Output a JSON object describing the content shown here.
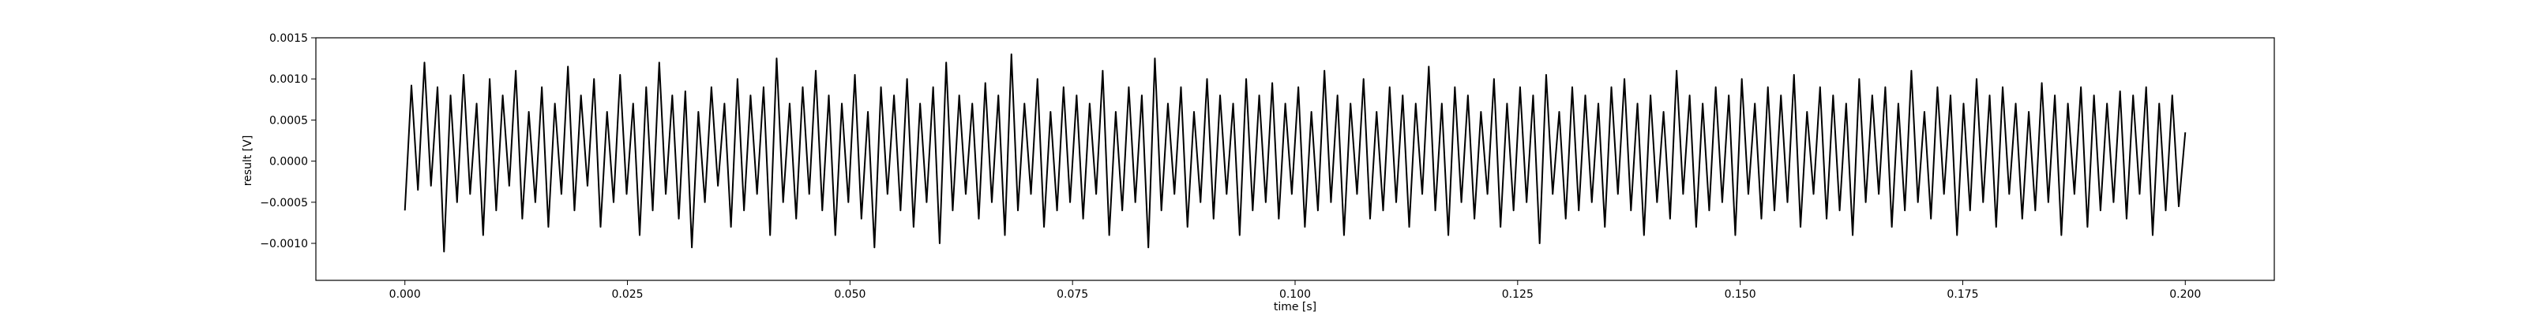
{
  "chart_data": {
    "type": "line",
    "title": "",
    "xlabel": "time [s]",
    "ylabel": "result [V]",
    "xlim": [
      -0.01,
      0.21
    ],
    "ylim": [
      -0.00145,
      0.0015
    ],
    "x_ticks": [
      0.0,
      0.025,
      0.05,
      0.075,
      0.1,
      0.125,
      0.15,
      0.175,
      0.2
    ],
    "x_tick_labels": [
      "0.000",
      "0.025",
      "0.050",
      "0.075",
      "0.100",
      "0.125",
      "0.150",
      "0.175",
      "0.200"
    ],
    "y_ticks": [
      -0.001,
      -0.0005,
      0.0,
      0.0005,
      0.001,
      0.0015
    ],
    "y_tick_labels": [
      "−0.0010",
      "−0.0005",
      "0.0000",
      "0.0005",
      "0.0010",
      "0.0015"
    ],
    "grid": false,
    "line_color": "#000000",
    "series": [
      {
        "x_start": 0.0,
        "x_end": 0.2,
        "values": [
          -0.0006,
          0.00092,
          -0.00035,
          0.0012,
          -0.0003,
          0.0009,
          -0.0011,
          0.0008,
          -0.0005,
          0.00105,
          -0.0004,
          0.0007,
          -0.0009,
          0.001,
          -0.0006,
          0.0008,
          -0.0003,
          0.0011,
          -0.0007,
          0.0006,
          -0.0005,
          0.0009,
          -0.0008,
          0.0007,
          -0.0004,
          0.00115,
          -0.0006,
          0.0008,
          -0.0003,
          0.001,
          -0.0008,
          0.0006,
          -0.0005,
          0.00105,
          -0.0004,
          0.0007,
          -0.0009,
          0.0009,
          -0.0006,
          0.0012,
          -0.0004,
          0.0008,
          -0.0007,
          0.00085,
          -0.00105,
          0.0006,
          -0.0005,
          0.0009,
          -0.0003,
          0.0007,
          -0.0008,
          0.001,
          -0.0006,
          0.0008,
          -0.0004,
          0.0009,
          -0.0009,
          0.00125,
          -0.0005,
          0.0007,
          -0.0007,
          0.0009,
          -0.0004,
          0.0011,
          -0.0006,
          0.0008,
          -0.0009,
          0.0007,
          -0.0005,
          0.00105,
          -0.0007,
          0.0006,
          -0.00105,
          0.0009,
          -0.0004,
          0.0008,
          -0.0006,
          0.001,
          -0.0008,
          0.0007,
          -0.0005,
          0.0009,
          -0.001,
          0.0012,
          -0.0006,
          0.0008,
          -0.0004,
          0.0007,
          -0.0007,
          0.00095,
          -0.0005,
          0.0008,
          -0.0009,
          0.0013,
          -0.0006,
          0.0007,
          -0.0004,
          0.001,
          -0.0008,
          0.0006,
          -0.0006,
          0.0009,
          -0.0005,
          0.0008,
          -0.0007,
          0.0007,
          -0.0004,
          0.0011,
          -0.0009,
          0.0006,
          -0.0006,
          0.0009,
          -0.0005,
          0.0008,
          -0.00105,
          0.00125,
          -0.0006,
          0.0007,
          -0.0004,
          0.0009,
          -0.0008,
          0.0006,
          -0.0005,
          0.001,
          -0.0007,
          0.0008,
          -0.0004,
          0.0007,
          -0.0009,
          0.001,
          -0.0006,
          0.0008,
          -0.0005,
          0.00095,
          -0.0007,
          0.0007,
          -0.0004,
          0.0009,
          -0.0008,
          0.0006,
          -0.0006,
          0.0011,
          -0.0005,
          0.0008,
          -0.0009,
          0.0007,
          -0.0004,
          0.001,
          -0.0007,
          0.0006,
          -0.0006,
          0.0009,
          -0.0005,
          0.0008,
          -0.0008,
          0.0007,
          -0.0004,
          0.00115,
          -0.0006,
          0.0007,
          -0.0009,
          0.0009,
          -0.0005,
          0.0008,
          -0.0007,
          0.0006,
          -0.0004,
          0.001,
          -0.0008,
          0.0007,
          -0.0006,
          0.0009,
          -0.0005,
          0.0008,
          -0.001,
          0.00105,
          -0.0004,
          0.0006,
          -0.0007,
          0.0009,
          -0.0006,
          0.0008,
          -0.0005,
          0.0007,
          -0.0008,
          0.0009,
          -0.0004,
          0.001,
          -0.0006,
          0.0007,
          -0.0009,
          0.0008,
          -0.0005,
          0.0006,
          -0.0007,
          0.0011,
          -0.0004,
          0.0008,
          -0.0008,
          0.0007,
          -0.0006,
          0.0009,
          -0.0005,
          0.0008,
          -0.0009,
          0.001,
          -0.0004,
          0.0007,
          -0.0007,
          0.0009,
          -0.0006,
          0.0008,
          -0.0005,
          0.00105,
          -0.0008,
          0.0006,
          -0.0004,
          0.0009,
          -0.0007,
          0.0008,
          -0.0006,
          0.0007,
          -0.0009,
          0.001,
          -0.0005,
          0.0008,
          -0.0004,
          0.0009,
          -0.0008,
          0.0007,
          -0.0006,
          0.0011,
          -0.0005,
          0.0006,
          -0.0007,
          0.0009,
          -0.0004,
          0.0008,
          -0.0009,
          0.0007,
          -0.0006,
          0.001,
          -0.0005,
          0.0008,
          -0.0008,
          0.0009,
          -0.0004,
          0.0007,
          -0.0007,
          0.0006,
          -0.0006,
          0.00095,
          -0.0005,
          0.0008,
          -0.0009,
          0.0007,
          -0.0004,
          0.0009,
          -0.0008,
          0.0008,
          -0.0006,
          0.0007,
          -0.0005,
          0.00085,
          -0.0007,
          0.0008,
          -0.0004,
          0.0009,
          -0.0009,
          0.0007,
          -0.0006,
          0.0008,
          -0.00055,
          0.00035
        ]
      }
    ]
  }
}
